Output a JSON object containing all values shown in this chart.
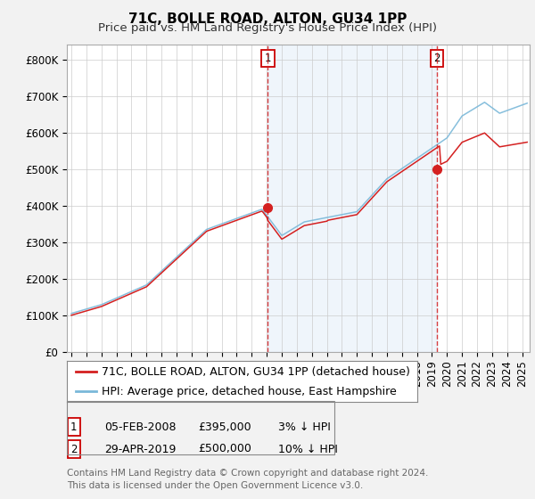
{
  "title": "71C, BOLLE ROAD, ALTON, GU34 1PP",
  "subtitle": "Price paid vs. HM Land Registry's House Price Index (HPI)",
  "ylabel_ticks": [
    "£0",
    "£100K",
    "£200K",
    "£300K",
    "£400K",
    "£500K",
    "£600K",
    "£700K",
    "£800K"
  ],
  "ytick_values": [
    0,
    100000,
    200000,
    300000,
    400000,
    500000,
    600000,
    700000,
    800000
  ],
  "ylim": [
    0,
    840000
  ],
  "xlim_start": 1994.7,
  "xlim_end": 2025.5,
  "purchase1_x": 2008.08,
  "purchase1_y": 395000,
  "purchase1_label": "1",
  "purchase2_x": 2019.33,
  "purchase2_y": 500000,
  "purchase2_label": "2",
  "hpi_color": "#7ab8d9",
  "price_color": "#d42020",
  "vline_color": "#d42020",
  "bg_color": "#f2f2f2",
  "plot_bg_color": "#ffffff",
  "shade_color": "#ddeeff",
  "legend1_text": "71C, BOLLE ROAD, ALTON, GU34 1PP (detached house)",
  "legend2_text": "HPI: Average price, detached house, East Hampshire",
  "annotation1_date": "05-FEB-2008",
  "annotation1_price": "£395,000",
  "annotation1_hpi": "3% ↓ HPI",
  "annotation2_date": "29-APR-2019",
  "annotation2_price": "£500,000",
  "annotation2_hpi": "10% ↓ HPI",
  "footer": "Contains HM Land Registry data © Crown copyright and database right 2024.\nThis data is licensed under the Open Government Licence v3.0.",
  "title_fontsize": 11,
  "subtitle_fontsize": 9.5,
  "tick_fontsize": 8.5,
  "legend_fontsize": 9,
  "annotation_fontsize": 9
}
